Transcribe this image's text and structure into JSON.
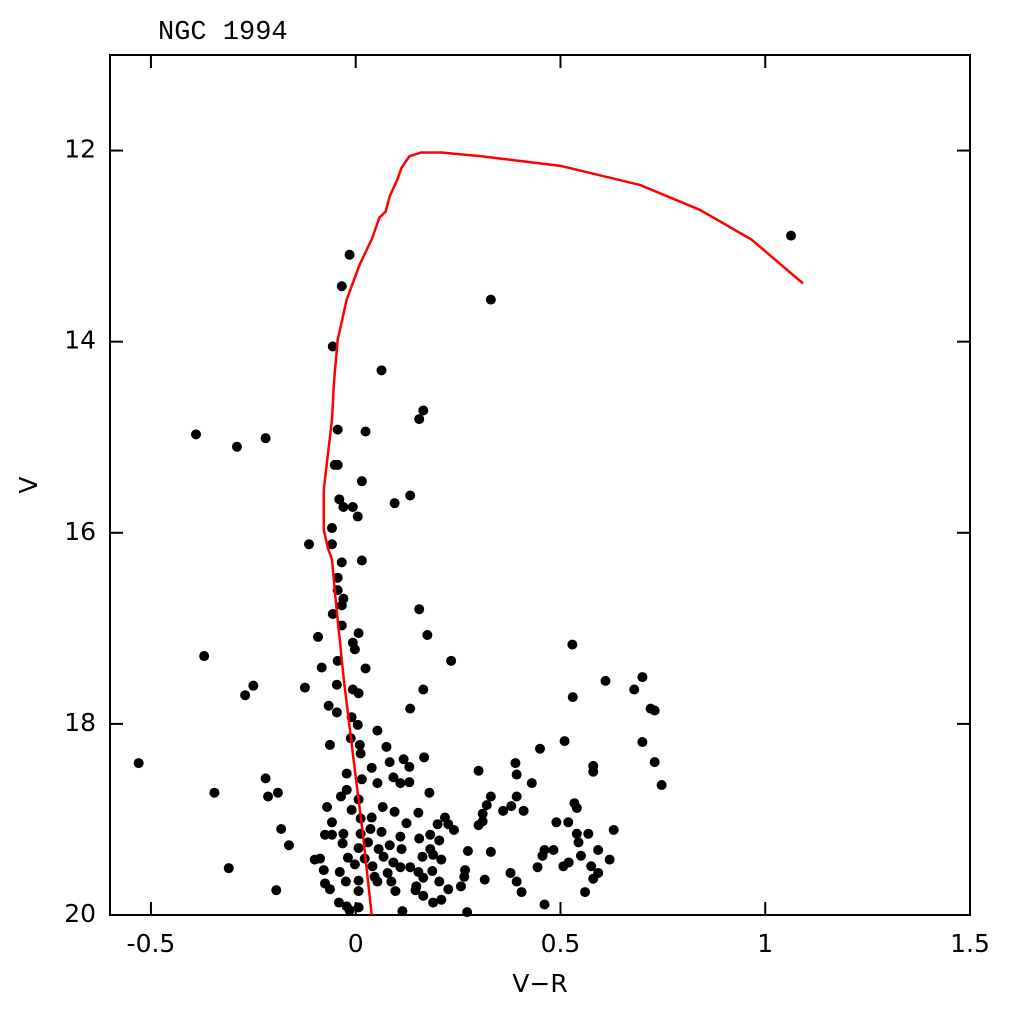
{
  "chart_data": {
    "type": "scatter",
    "title": "NGC 1994",
    "x_label": "V−R",
    "y_label": "V",
    "xlim": [
      -0.6,
      1.5
    ],
    "ylim": [
      20,
      11
    ],
    "xticks": [
      -0.5,
      0,
      0.5,
      1,
      1.5
    ],
    "yticks": [
      12,
      14,
      16,
      18,
      20
    ],
    "color": "#000000",
    "x": [
      1.063,
      0.33,
      -0.015,
      -0.034,
      -0.056,
      0.063,
      -0.39,
      -0.29,
      -0.22,
      0.165,
      0.155,
      -0.044,
      0.024,
      -0.051,
      -0.044,
      0.015,
      0.133,
      0.095,
      -0.04,
      -0.03,
      -0.007,
      0.005,
      -0.058,
      -0.114,
      -0.058,
      0.015,
      -0.034,
      -0.044,
      -0.044,
      -0.03,
      -0.034,
      -0.056,
      0.155,
      -0.034,
      -0.092,
      0.007,
      -0.007,
      -0.002,
      0.175,
      -0.37,
      0.233,
      -0.044,
      -0.083,
      0.024,
      0.529,
      0.7,
      0.61,
      0.68,
      -0.25,
      -0.27,
      -0.124,
      -0.046,
      -0.007,
      0.007,
      0.165,
      0.53,
      -0.066,
      -0.046,
      0.133,
      0.72,
      0.73,
      -0.01,
      0.005,
      0.053,
      -0.012,
      -0.063,
      0.01,
      0.075,
      0.45,
      0.7,
      0.51,
      0.167,
      0.117,
      0.012,
      0.083,
      -0.53,
      0.039,
      0.131,
      0.39,
      0.58,
      0.58,
      0.73,
      0.3,
      0.393,
      -0.022,
      0.015,
      0.092,
      -0.22,
      0.109,
      0.131,
      0.43,
      0.747,
      0.053,
      -0.345,
      -0.19,
      -0.214,
      -0.022,
      0.18,
      -0.036,
      0.007,
      0.33,
      0.32,
      0.393,
      0.38,
      0.36,
      0.41,
      0.534,
      0.54,
      -0.07,
      -0.01,
      0.066,
      0.095,
      0.039,
      0.012,
      0.153,
      0.31,
      0.218,
      0.226,
      0.31,
      0.3,
      0.49,
      0.519,
      0.2,
      0.124,
      -0.058,
      -0.182,
      0.036,
      0.063,
      0.24,
      0.182,
      0.63,
      -0.075,
      -0.058,
      -0.03,
      0.012,
      0.109,
      0.54,
      0.568,
      0.155,
      0.204,
      -0.163,
      0.544,
      0.083,
      -0.032,
      0.03,
      0.007,
      0.112,
      0.056,
      0.182,
      0.274,
      0.461,
      0.592,
      0.483,
      0.33,
      0.068,
      0.163,
      0.189,
      0.456,
      0.55,
      -0.087,
      -0.019,
      0.022,
      0.209,
      -0.1,
      0.62,
      0.092,
      0.041,
      0.52,
      0.507,
      0.133,
      0.109,
      -0.002,
      0.444,
      0.575,
      -0.078,
      0.267,
      -0.31,
      0.153,
      0.187,
      -0.039,
      0.592,
      0.078,
      0.378,
      0.58,
      0.046,
      0.265,
      0.165,
      0.315,
      0.393,
      -0.024,
      -0.075,
      0.053,
      0.087,
      0.007,
      0.204,
      0.257,
      -0.063,
      -0.194,
      0.007,
      0.146,
      0.405,
      0.148,
      0.097,
      0.226,
      0.56,
      0.165,
      0.209,
      0.189,
      0.461,
      -0.041,
      -0.022,
      0.007,
      0.114,
      0.272,
      -0.015
    ],
    "values": [
      12.89,
      13.56,
      13.09,
      13.42,
      14.05,
      14.3,
      14.97,
      15.1,
      15.01,
      14.72,
      14.81,
      14.92,
      14.94,
      15.29,
      15.29,
      15.46,
      15.61,
      15.69,
      15.65,
      15.73,
      15.73,
      15.83,
      15.95,
      16.12,
      16.12,
      16.29,
      16.31,
      16.47,
      16.6,
      16.69,
      16.76,
      16.85,
      16.8,
      16.97,
      17.09,
      17.05,
      17.15,
      17.22,
      17.07,
      17.29,
      17.34,
      17.34,
      17.41,
      17.42,
      17.17,
      17.51,
      17.55,
      17.64,
      17.6,
      17.7,
      17.62,
      17.59,
      17.64,
      17.68,
      17.64,
      17.72,
      17.81,
      17.88,
      17.84,
      17.84,
      17.86,
      17.93,
      18.01,
      18.07,
      18.15,
      18.22,
      18.22,
      18.24,
      18.26,
      18.19,
      18.18,
      18.35,
      18.37,
      18.31,
      18.4,
      18.41,
      18.46,
      18.45,
      18.41,
      18.44,
      18.5,
      18.4,
      18.49,
      18.53,
      18.52,
      18.58,
      18.56,
      18.57,
      18.62,
      18.61,
      18.62,
      18.64,
      18.62,
      18.72,
      18.72,
      18.76,
      18.69,
      18.72,
      18.76,
      18.79,
      18.76,
      18.85,
      18.76,
      18.86,
      18.91,
      18.91,
      18.83,
      18.88,
      18.87,
      18.9,
      18.87,
      18.92,
      18.98,
      18.99,
      18.93,
      18.94,
      18.98,
      19.05,
      19.02,
      19.06,
      19.03,
      19.03,
      19.05,
      19.04,
      19.03,
      19.1,
      19.1,
      19.13,
      19.11,
      19.16,
      19.11,
      19.16,
      19.16,
      19.15,
      19.15,
      19.18,
      19.15,
      19.15,
      19.2,
      19.22,
      19.27,
      19.24,
      19.27,
      19.25,
      19.24,
      19.3,
      19.31,
      19.31,
      19.31,
      19.33,
      19.32,
      19.32,
      19.32,
      19.34,
      19.39,
      19.39,
      19.37,
      19.38,
      19.38,
      19.41,
      19.4,
      19.41,
      19.42,
      19.42,
      19.42,
      19.45,
      19.49,
      19.45,
      19.49,
      19.5,
      19.5,
      19.47,
      19.5,
      19.49,
      19.53,
      19.53,
      19.51,
      19.55,
      19.54,
      19.55,
      19.56,
      19.56,
      19.56,
      19.62,
      19.6,
      19.6,
      19.61,
      19.63,
      19.65,
      19.65,
      19.67,
      19.65,
      19.65,
      19.64,
      19.65,
      19.7,
      19.73,
      19.74,
      19.75,
      19.74,
      19.76,
      19.7,
      19.75,
      19.73,
      19.76,
      19.8,
      19.84,
      19.87,
      19.89,
      19.87,
      19.91,
      19.92,
      19.96,
      19.97,
      19.95
    ],
    "line": {
      "color": "#ff0000",
      "x": [
        1.092,
        0.966,
        0.84,
        0.694,
        0.5,
        0.306,
        0.209,
        0.16,
        0.131,
        0.112,
        0.102,
        0.083,
        0.073,
        0.058,
        0.039,
        0.01,
        -0.022,
        -0.044,
        -0.053,
        -0.058,
        -0.068,
        -0.078,
        -0.078,
        -0.068,
        -0.058,
        -0.049,
        -0.029,
        -0.005,
        0.019,
        0.039
      ],
      "values": [
        13.39,
        12.93,
        12.62,
        12.36,
        12.16,
        12.06,
        12.02,
        12.02,
        12.06,
        12.18,
        12.3,
        12.48,
        12.64,
        12.7,
        12.93,
        13.19,
        13.56,
        13.98,
        14.42,
        14.82,
        15.18,
        15.55,
        15.97,
        16.16,
        16.28,
        16.7,
        17.54,
        18.38,
        19.21,
        20.0
      ]
    }
  }
}
